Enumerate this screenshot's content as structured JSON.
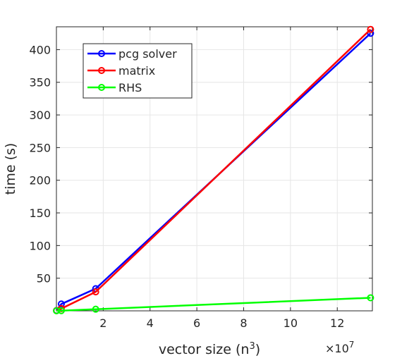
{
  "chart_data": {
    "type": "line",
    "xlabel_base": "vector size (n",
    "xlabel_sup": "3",
    "xlabel_tail": ")",
    "ylabel": "time (s)",
    "x_exponent_base": "×10",
    "x_exponent_power": "7",
    "x_scale": 10000000,
    "xlim": [
      0,
      135000000
    ],
    "ylim": [
      0,
      435
    ],
    "x_ticks": [
      20000000,
      40000000,
      60000000,
      80000000,
      100000000,
      120000000
    ],
    "x_tick_labels": [
      "2",
      "4",
      "6",
      "8",
      "10",
      "12"
    ],
    "y_ticks": [
      50,
      100,
      150,
      200,
      250,
      300,
      350,
      400
    ],
    "y_tick_labels": [
      "50",
      "100",
      "150",
      "200",
      "250",
      "300",
      "350",
      "400"
    ],
    "grid": true,
    "legend_position": "top-left",
    "x": [
      32768,
      2097152,
      16777216,
      134217728
    ],
    "series": [
      {
        "name": "pcg solver",
        "color": "#0000ff",
        "marker": "circle",
        "values": [
          0.5,
          10.5,
          34,
          425
        ]
      },
      {
        "name": "matrix",
        "color": "#ff0000",
        "marker": "circle",
        "values": [
          0.3,
          3.5,
          29,
          431
        ]
      },
      {
        "name": "RHS",
        "color": "#00ff00",
        "marker": "circle",
        "values": [
          0.1,
          0.3,
          2.5,
          20
        ]
      }
    ]
  }
}
